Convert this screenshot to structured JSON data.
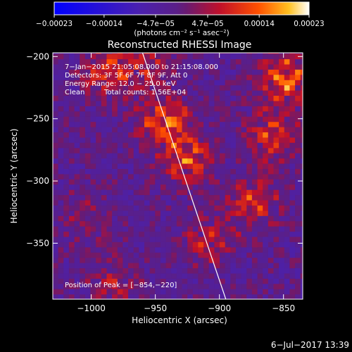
{
  "colorbar": {
    "ticks": [
      "−0.00023",
      "−0.00014",
      "−4.7e−05",
      "4.7e−05",
      "0.00014",
      "0.00023"
    ],
    "tick_values": [
      -0.00023,
      -0.00014,
      -4.7e-05,
      4.7e-05,
      0.00014,
      0.00023
    ],
    "unit": "(photons cm⁻² s⁻¹ asec⁻²)",
    "range": [
      -0.00023,
      0.00023
    ]
  },
  "chart_data": {
    "type": "heatmap",
    "title": "Reconstructed RHESSI Image",
    "xlabel": "Heliocentric X (arcsec)",
    "ylabel": "Heliocentric Y (arcsec)",
    "xlim": [
      -1030,
      -835
    ],
    "ylim": [
      -395,
      -197
    ],
    "x_ticks": [
      -1000,
      -950,
      -900,
      -850
    ],
    "y_ticks": [
      -200,
      -250,
      -300,
      -350
    ],
    "x_tick_labels": [
      "−1000",
      "−950",
      "−900",
      "−850"
    ],
    "y_tick_labels": [
      "−200",
      "−250",
      "−300",
      "−350"
    ],
    "peak": [
      -854,
      -220
    ],
    "limb_line": [
      [
        -960,
        -197
      ],
      [
        -895,
        -395
      ]
    ],
    "hot_spots": [
      {
        "x": -945,
        "y": -255,
        "value": 0.00023
      },
      {
        "x": -925,
        "y": -285,
        "value": 0.00018
      },
      {
        "x": -850,
        "y": -220,
        "value": 0.00023
      },
      {
        "x": -860,
        "y": -265,
        "value": 0.00017
      },
      {
        "x": -875,
        "y": -320,
        "value": 0.00015
      },
      {
        "x": -910,
        "y": -350,
        "value": 0.00012
      },
      {
        "x": -990,
        "y": -215,
        "value": 0.00016
      },
      {
        "x": -960,
        "y": -205,
        "value": 0.00012
      },
      {
        "x": -1005,
        "y": -330,
        "value": 8e-05
      },
      {
        "x": -985,
        "y": -385,
        "value": 0.0001
      }
    ]
  },
  "annotations": {
    "time": "7−Jan−2015 21:05:08.000 to 21:15:08.000",
    "detectors": "Detectors: 3F 5F 6F 7F 8F 9F, Att 0",
    "energy": "Energy Range: 12.0 − 25.0 keV",
    "method": "Clean",
    "counts": "Total counts: 1.56E+04",
    "peak_text": "Position of Peak = [−854,−220]"
  },
  "footer": {
    "date": "6−Jul−2017 13:39"
  }
}
